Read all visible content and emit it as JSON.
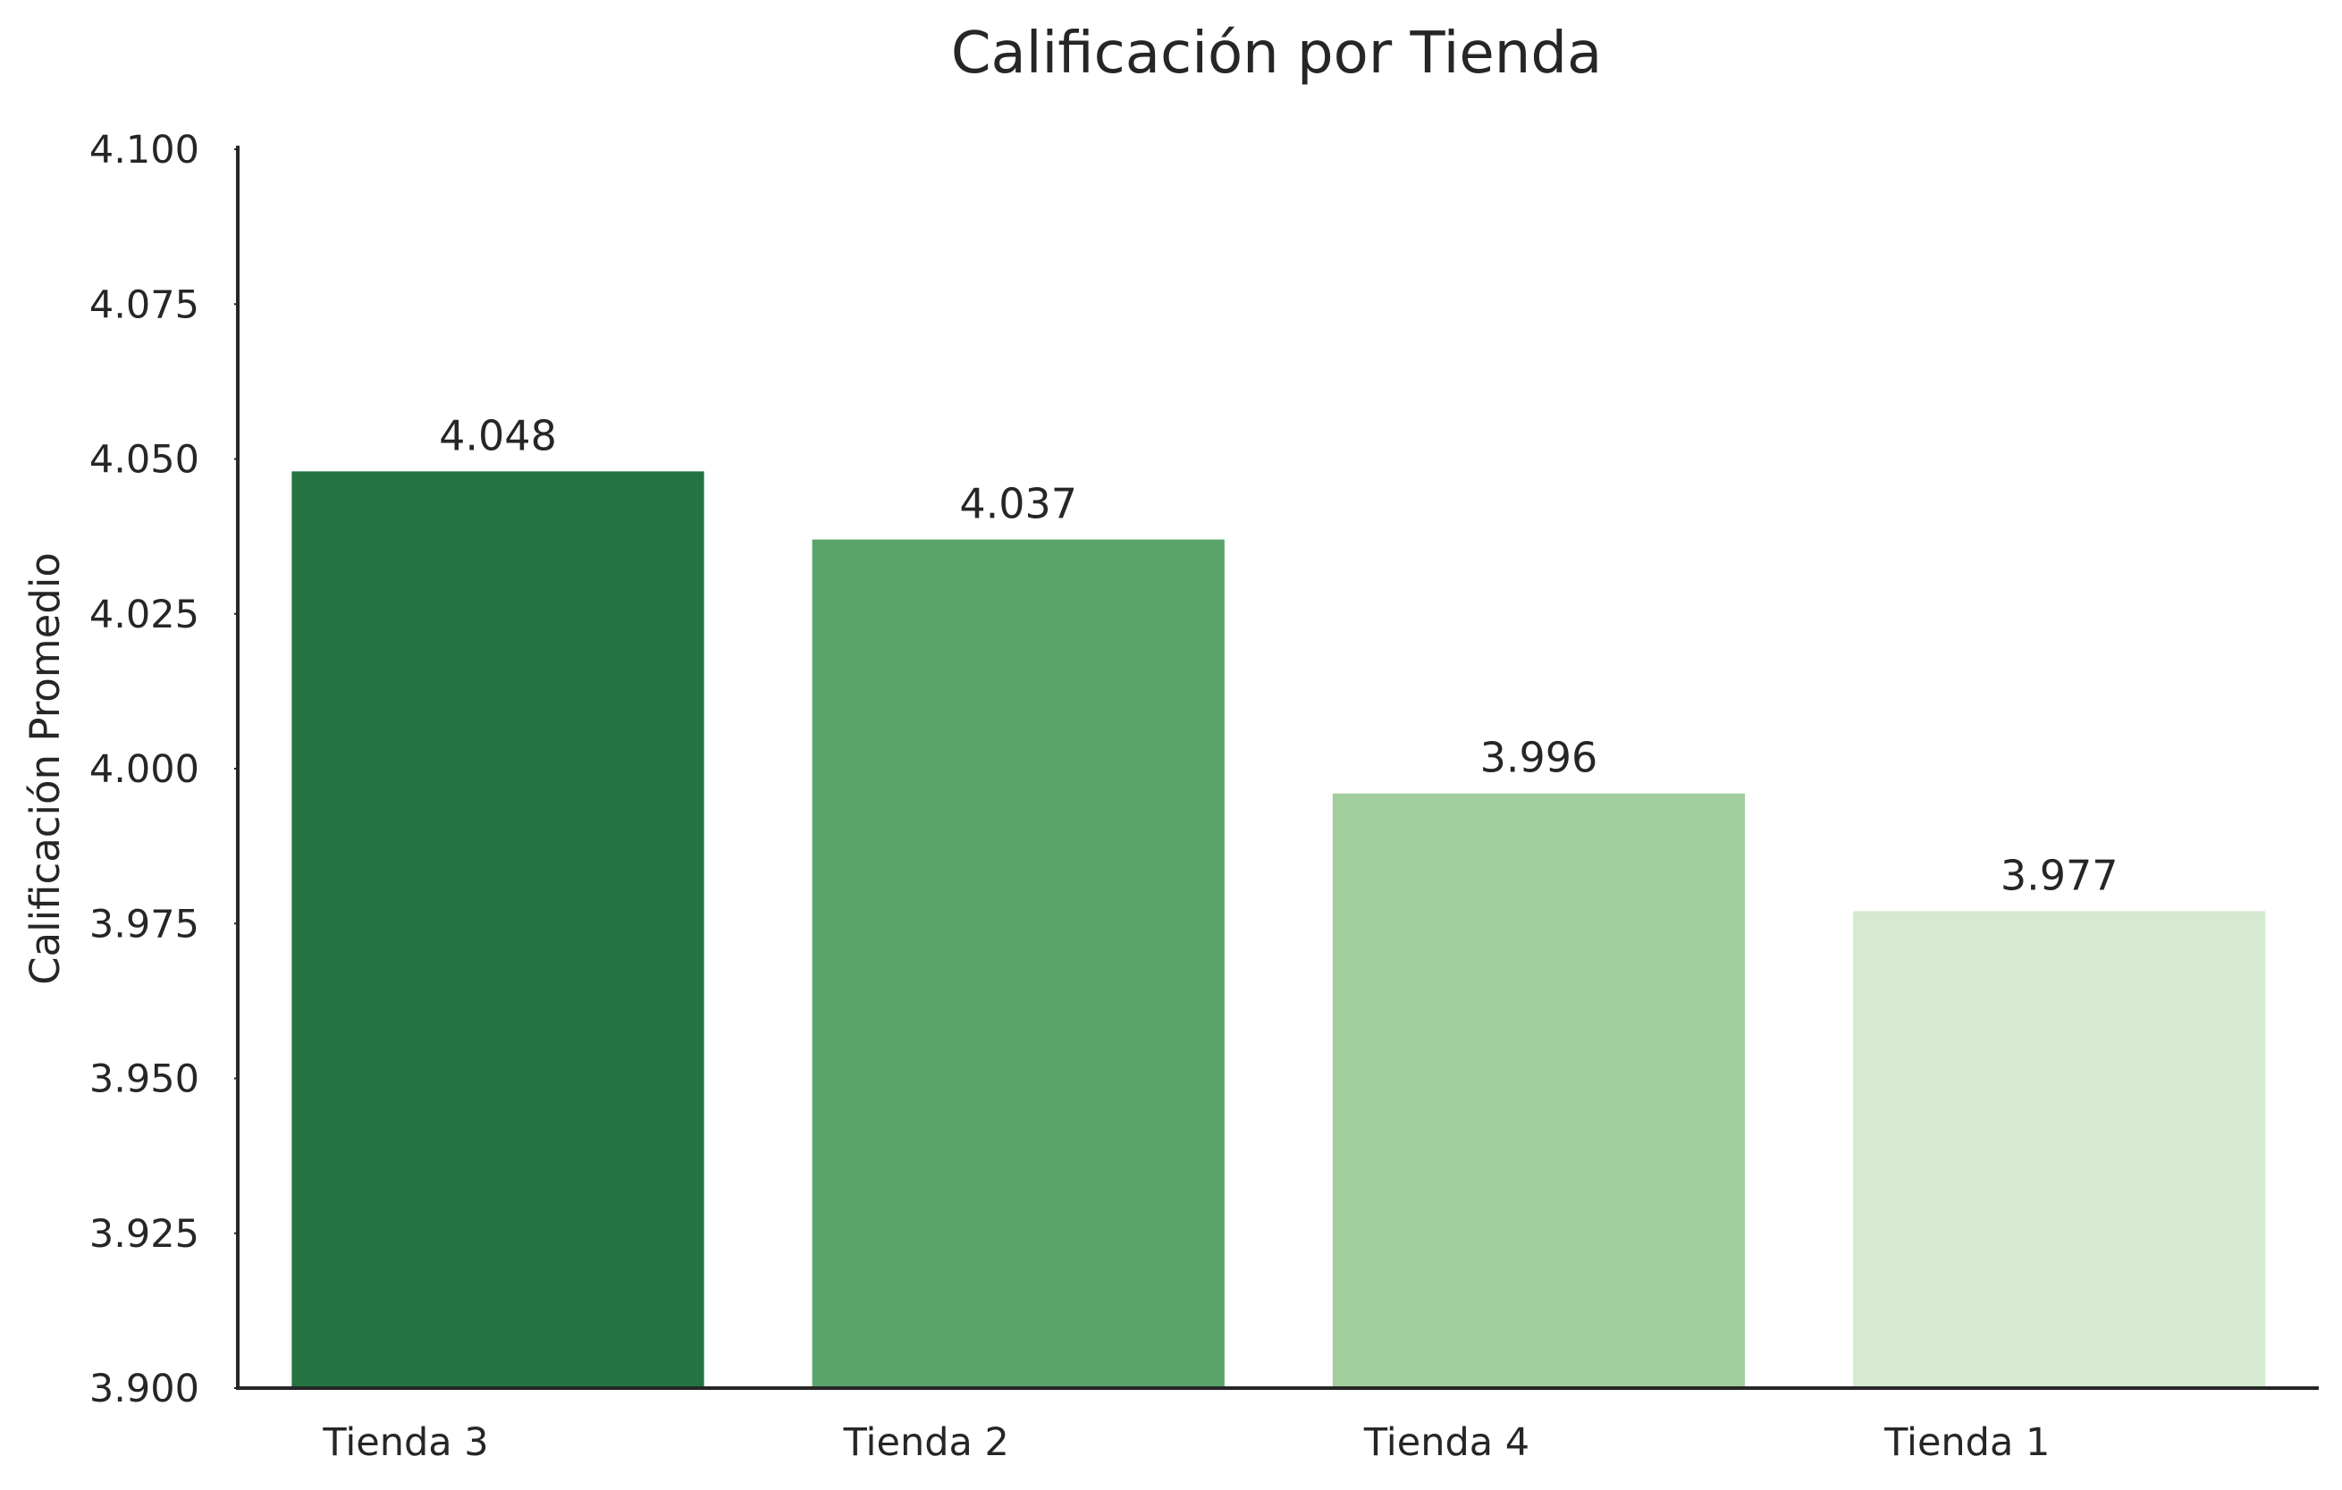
{
  "chart_data": {
    "type": "bar",
    "title": "Calificación por Tienda",
    "xlabel": "",
    "ylabel": "Calificación Promedio",
    "categories": [
      "Tienda 3",
      "Tienda 2",
      "Tienda 4",
      "Tienda 1"
    ],
    "values": [
      4.048,
      4.037,
      3.996,
      3.977
    ],
    "value_labels": [
      "4.048",
      "4.037",
      "3.996",
      "3.977"
    ],
    "colors": [
      "#237441",
      "#5aa46c",
      "#a1ce9c",
      "#d5ead0"
    ],
    "ylim": [
      3.9,
      4.1
    ],
    "yticks": [
      3.9,
      3.925,
      3.95,
      3.975,
      4.0,
      4.025,
      4.05,
      4.075,
      4.1
    ],
    "ytick_labels": [
      "3.900",
      "3.925",
      "3.950",
      "3.975",
      "4.000",
      "4.025",
      "4.050",
      "4.075",
      "4.100"
    ],
    "grid": false,
    "legend": "none"
  }
}
